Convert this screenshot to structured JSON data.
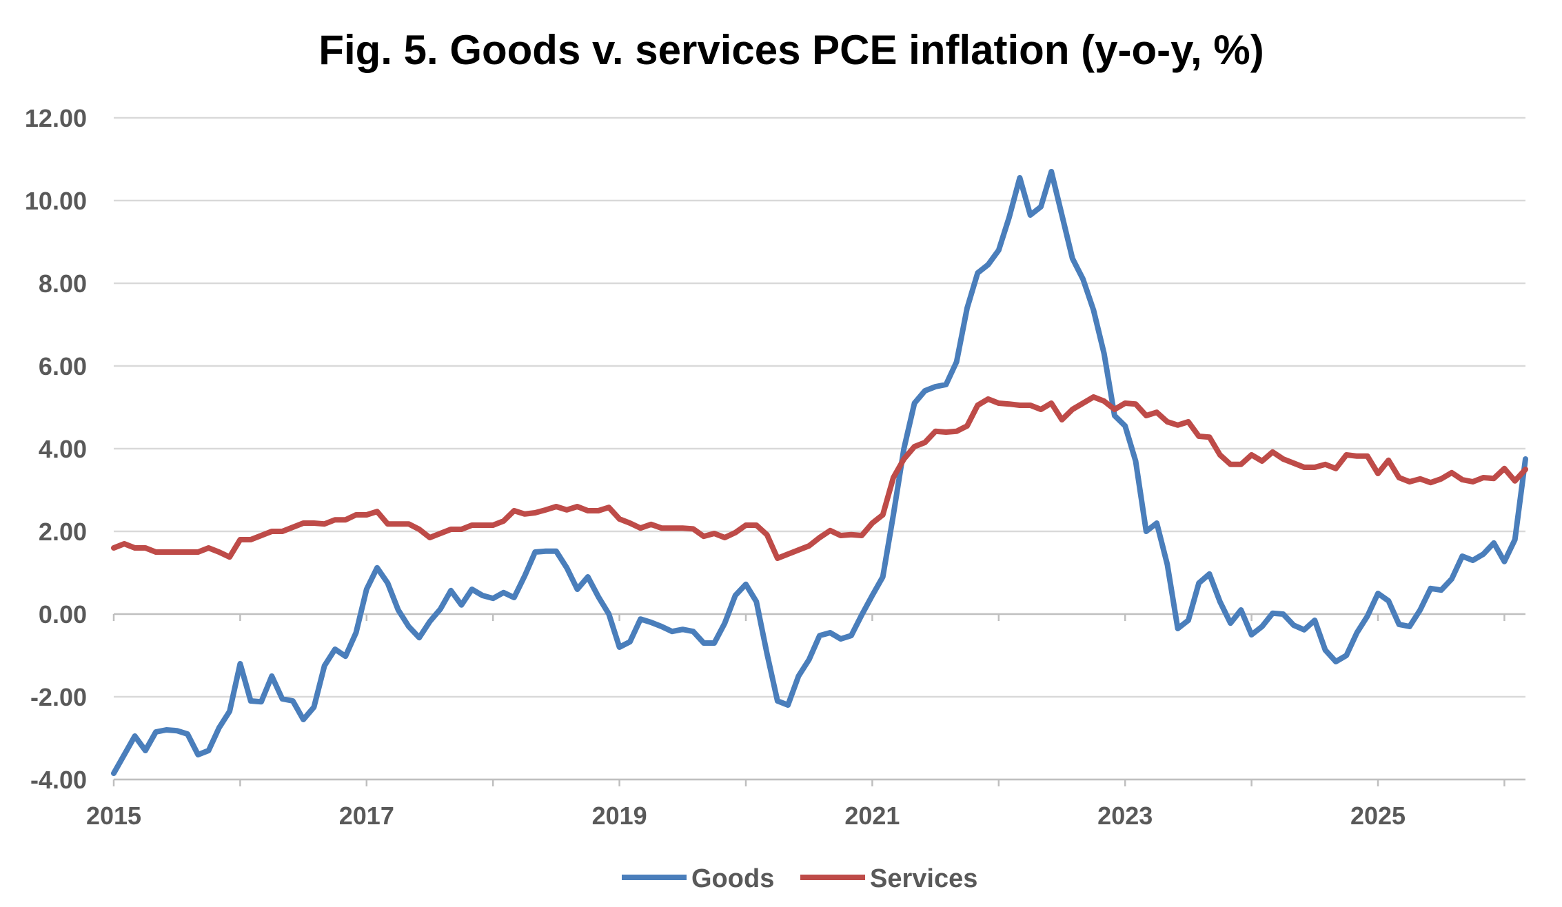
{
  "chart_data": {
    "type": "line",
    "title": "Fig. 5. Goods v. services PCE inflation (y-o-y, %)",
    "xlabel": "",
    "ylabel": "",
    "ylim": [
      -4,
      12
    ],
    "yticks": [
      "-4.00",
      "-2.00",
      "0.00",
      "2.00",
      "4.00",
      "6.00",
      "8.00",
      "10.00",
      "12.00"
    ],
    "xlim": [
      "2015-01",
      "2026-03"
    ],
    "xticks": [
      "2015",
      "2017",
      "2019",
      "2021",
      "2023",
      "2025"
    ],
    "grid": "horizontal",
    "legend_position": "bottom",
    "colors": {
      "goods": "#4a7ebb",
      "services": "#be4b48"
    },
    "series": [
      {
        "name": "Goods",
        "color": "#4a7ebb",
        "x": [
          "2015-01",
          "2015-02",
          "2015-03",
          "2015-04",
          "2015-05",
          "2015-06",
          "2015-07",
          "2015-08",
          "2015-09",
          "2015-10",
          "2015-11",
          "2015-12",
          "2016-01",
          "2016-02",
          "2016-03",
          "2016-04",
          "2016-05",
          "2016-06",
          "2016-07",
          "2016-08",
          "2016-09",
          "2016-10",
          "2016-11",
          "2016-12",
          "2017-01",
          "2017-02",
          "2017-03",
          "2017-04",
          "2017-05",
          "2017-06",
          "2017-07",
          "2017-08",
          "2017-09",
          "2017-10",
          "2017-11",
          "2017-12",
          "2018-01",
          "2018-02",
          "2018-03",
          "2018-04",
          "2018-05",
          "2018-06",
          "2018-07",
          "2018-08",
          "2018-09",
          "2018-10",
          "2018-11",
          "2018-12",
          "2019-01",
          "2019-02",
          "2019-03",
          "2019-04",
          "2019-05",
          "2019-06",
          "2019-07",
          "2019-08",
          "2019-09",
          "2019-10",
          "2019-11",
          "2019-12",
          "2020-01",
          "2020-02",
          "2020-03",
          "2020-04",
          "2020-05",
          "2020-06",
          "2020-07",
          "2020-08",
          "2020-09",
          "2020-10",
          "2020-11",
          "2020-12",
          "2021-01",
          "2021-02",
          "2021-03",
          "2021-04",
          "2021-05",
          "2021-06",
          "2021-07",
          "2021-08",
          "2021-09",
          "2021-10",
          "2021-11",
          "2021-12",
          "2022-01",
          "2022-02",
          "2022-03",
          "2022-04",
          "2022-05",
          "2022-06",
          "2022-07",
          "2022-08",
          "2022-09",
          "2022-10",
          "2022-11",
          "2022-12",
          "2023-01",
          "2023-02",
          "2023-03",
          "2023-04",
          "2023-05",
          "2023-06",
          "2023-07",
          "2023-08",
          "2023-09",
          "2023-10",
          "2023-11",
          "2023-12",
          "2024-01",
          "2024-02",
          "2024-03",
          "2024-04",
          "2024-05",
          "2024-06",
          "2024-07",
          "2024-08",
          "2024-09",
          "2024-10",
          "2024-11",
          "2024-12",
          "2025-01",
          "2025-02",
          "2025-03",
          "2025-04",
          "2025-05",
          "2025-06",
          "2025-07",
          "2025-08",
          "2025-09",
          "2025-10",
          "2025-11",
          "2025-12",
          "2026-01",
          "2026-02",
          "2026-03"
        ],
        "values": [
          -3.85,
          -3.4,
          -2.95,
          -3.3,
          -2.85,
          -2.8,
          -2.82,
          -2.9,
          -3.4,
          -3.3,
          -2.75,
          -2.35,
          -1.2,
          -2.1,
          -2.12,
          -1.5,
          -2.05,
          -2.1,
          -2.55,
          -2.25,
          -1.25,
          -0.85,
          -1.02,
          -0.45,
          0.6,
          1.12,
          0.75,
          0.1,
          -0.3,
          -0.57,
          -0.18,
          0.12,
          0.57,
          0.22,
          0.6,
          0.45,
          0.38,
          0.52,
          0.4,
          0.92,
          1.5,
          1.52,
          1.52,
          1.12,
          0.6,
          0.9,
          0.42,
          0.0,
          -0.8,
          -0.67,
          -0.12,
          -0.2,
          -0.3,
          -0.42,
          -0.37,
          -0.42,
          -0.7,
          -0.7,
          -0.22,
          0.45,
          0.72,
          0.3,
          -0.95,
          -2.1,
          -2.2,
          -1.5,
          -1.1,
          -0.52,
          -0.45,
          -0.6,
          -0.52,
          -0.02,
          0.45,
          0.9,
          2.4,
          4.0,
          5.1,
          5.4,
          5.5,
          5.55,
          6.1,
          7.4,
          8.25,
          8.45,
          8.8,
          9.6,
          10.55,
          9.65,
          9.85,
          10.7,
          9.65,
          8.6,
          8.1,
          7.35,
          6.3,
          4.8,
          4.55,
          3.7,
          2.0,
          2.2,
          1.2,
          -0.35,
          -0.15,
          0.75,
          0.97,
          0.3,
          -0.22,
          0.1,
          -0.5,
          -0.3,
          0.02,
          0.0,
          -0.27,
          -0.38,
          -0.15,
          -0.87,
          -1.15,
          -1.0,
          -0.45,
          -0.05,
          0.5,
          0.32,
          -0.25,
          -0.3,
          0.1,
          0.62,
          0.58,
          0.85,
          1.4,
          1.3,
          1.45,
          1.72,
          1.27,
          1.8,
          3.75
        ]
      },
      {
        "name": "Services",
        "color": "#be4b48",
        "x": [
          "2015-01",
          "2015-02",
          "2015-03",
          "2015-04",
          "2015-05",
          "2015-06",
          "2015-07",
          "2015-08",
          "2015-09",
          "2015-10",
          "2015-11",
          "2015-12",
          "2016-01",
          "2016-02",
          "2016-03",
          "2016-04",
          "2016-05",
          "2016-06",
          "2016-07",
          "2016-08",
          "2016-09",
          "2016-10",
          "2016-11",
          "2016-12",
          "2017-01",
          "2017-02",
          "2017-03",
          "2017-04",
          "2017-05",
          "2017-06",
          "2017-07",
          "2017-08",
          "2017-09",
          "2017-10",
          "2017-11",
          "2017-12",
          "2018-01",
          "2018-02",
          "2018-03",
          "2018-04",
          "2018-05",
          "2018-06",
          "2018-07",
          "2018-08",
          "2018-09",
          "2018-10",
          "2018-11",
          "2018-12",
          "2019-01",
          "2019-02",
          "2019-03",
          "2019-04",
          "2019-05",
          "2019-06",
          "2019-07",
          "2019-08",
          "2019-09",
          "2019-10",
          "2019-11",
          "2019-12",
          "2020-01",
          "2020-02",
          "2020-03",
          "2020-04",
          "2020-05",
          "2020-06",
          "2020-07",
          "2020-08",
          "2020-09",
          "2020-10",
          "2020-11",
          "2020-12",
          "2021-01",
          "2021-02",
          "2021-03",
          "2021-04",
          "2021-05",
          "2021-06",
          "2021-07",
          "2021-08",
          "2021-09",
          "2021-10",
          "2021-11",
          "2021-12",
          "2022-01",
          "2022-02",
          "2022-03",
          "2022-04",
          "2022-05",
          "2022-06",
          "2022-07",
          "2022-08",
          "2022-09",
          "2022-10",
          "2022-11",
          "2022-12",
          "2023-01",
          "2023-02",
          "2023-03",
          "2023-04",
          "2023-05",
          "2023-06",
          "2023-07",
          "2023-08",
          "2023-09",
          "2023-10",
          "2023-11",
          "2023-12",
          "2024-01",
          "2024-02",
          "2024-03",
          "2024-04",
          "2024-05",
          "2024-06",
          "2024-07",
          "2024-08",
          "2024-09",
          "2024-10",
          "2024-11",
          "2024-12",
          "2025-01",
          "2025-02",
          "2025-03",
          "2025-04",
          "2025-05",
          "2025-06",
          "2025-07",
          "2025-08",
          "2025-09",
          "2025-10",
          "2025-11",
          "2025-12",
          "2026-01",
          "2026-02",
          "2026-03"
        ],
        "values": [
          1.6,
          1.7,
          1.6,
          1.6,
          1.5,
          1.5,
          1.5,
          1.5,
          1.5,
          1.6,
          1.5,
          1.38,
          1.8,
          1.8,
          1.9,
          2.0,
          2.0,
          2.1,
          2.2,
          2.2,
          2.18,
          2.28,
          2.28,
          2.4,
          2.4,
          2.48,
          2.18,
          2.18,
          2.18,
          2.05,
          1.85,
          1.95,
          2.05,
          2.05,
          2.15,
          2.15,
          2.15,
          2.25,
          2.5,
          2.42,
          2.45,
          2.52,
          2.6,
          2.52,
          2.6,
          2.5,
          2.5,
          2.58,
          2.3,
          2.2,
          2.08,
          2.17,
          2.08,
          2.08,
          2.08,
          2.06,
          1.88,
          1.95,
          1.85,
          1.97,
          2.15,
          2.15,
          1.92,
          1.35,
          1.45,
          1.55,
          1.65,
          1.85,
          2.02,
          1.9,
          1.92,
          1.9,
          2.2,
          2.4,
          3.3,
          3.75,
          4.05,
          4.15,
          4.42,
          4.4,
          4.42,
          4.55,
          5.05,
          5.2,
          5.1,
          5.08,
          5.05,
          5.05,
          4.95,
          5.1,
          4.7,
          4.95,
          5.1,
          5.25,
          5.15,
          4.95,
          5.1,
          5.08,
          4.8,
          4.88,
          4.65,
          4.57,
          4.65,
          4.3,
          4.28,
          3.85,
          3.62,
          3.62,
          3.85,
          3.7,
          3.92,
          3.75,
          3.65,
          3.55,
          3.55,
          3.62,
          3.52,
          3.85,
          3.82,
          3.82,
          3.4,
          3.72,
          3.3,
          3.2,
          3.27,
          3.18,
          3.27,
          3.42,
          3.25,
          3.2,
          3.3,
          3.28,
          3.52,
          3.22,
          3.5
        ]
      }
    ]
  }
}
